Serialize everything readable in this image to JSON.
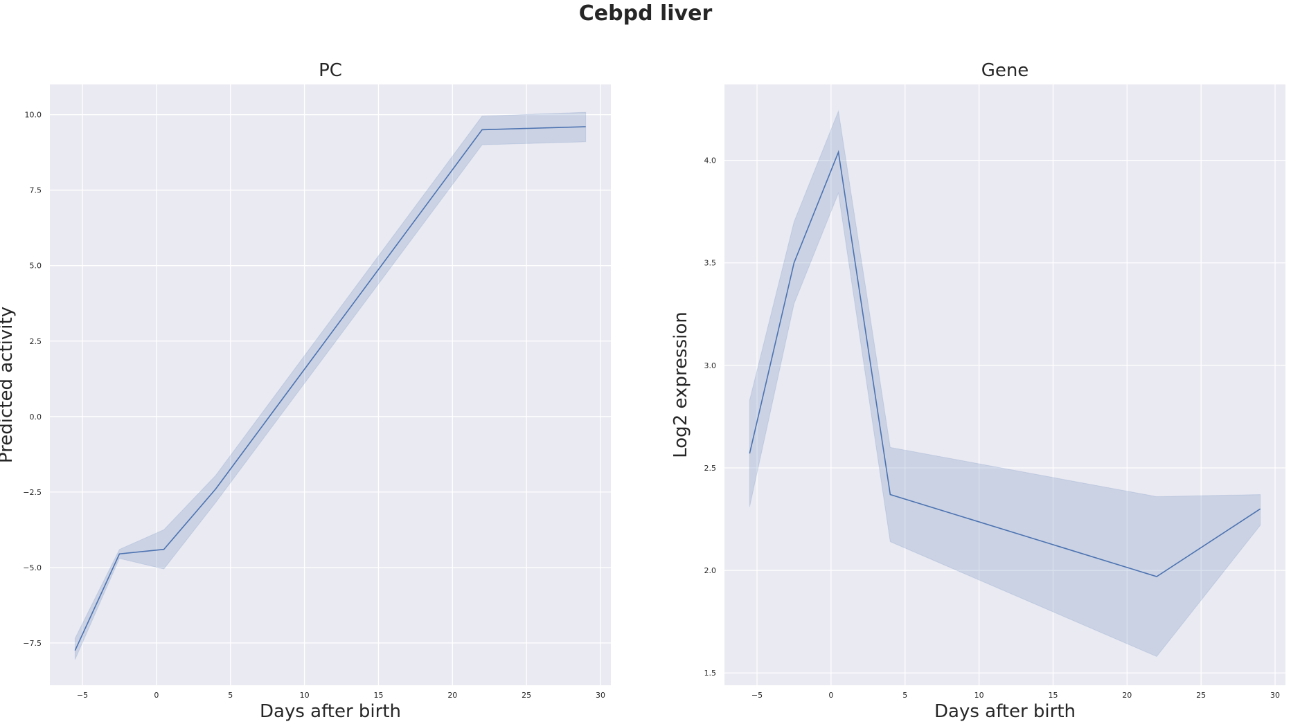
{
  "suptitle": "Cebpd liver",
  "chart_data": [
    {
      "type": "line",
      "title": "PC",
      "xlabel": "Days after birth",
      "ylabel": "Predicted activity",
      "xlim": [
        -7.2,
        30.7
      ],
      "ylim": [
        -8.9,
        11.0
      ],
      "xticks": [
        -5,
        0,
        5,
        10,
        15,
        20,
        25,
        30
      ],
      "yticks": [
        -7.5,
        -5.0,
        -2.5,
        0.0,
        2.5,
        5.0,
        7.5,
        10.0
      ],
      "grid": true,
      "series": [
        {
          "x": [
            -5.5,
            -2.5,
            0.5,
            4.0,
            22.0,
            29.0
          ],
          "y": [
            -7.75,
            -4.55,
            -4.4,
            -2.4,
            9.5,
            9.6
          ],
          "lower": [
            -8.05,
            -4.7,
            -5.05,
            -2.85,
            9.0,
            9.1
          ],
          "upper": [
            -7.35,
            -4.4,
            -3.75,
            -1.95,
            9.95,
            10.08
          ]
        }
      ]
    },
    {
      "type": "line",
      "title": "Gene",
      "xlabel": "Days after birth",
      "ylabel": "Log2 expression",
      "xlim": [
        -7.2,
        30.7
      ],
      "ylim": [
        1.44,
        4.37
      ],
      "xticks": [
        -5,
        0,
        5,
        10,
        15,
        20,
        25,
        30
      ],
      "yticks": [
        1.5,
        2.0,
        2.5,
        3.0,
        3.5,
        4.0
      ],
      "grid": true,
      "series": [
        {
          "x": [
            -5.5,
            -2.5,
            0.5,
            4.0,
            22.0,
            29.0
          ],
          "y": [
            2.57,
            3.5,
            4.04,
            2.37,
            1.97,
            2.3
          ],
          "lower": [
            2.31,
            3.3,
            3.84,
            2.14,
            1.58,
            2.22
          ],
          "upper": [
            2.83,
            3.7,
            4.24,
            2.6,
            2.36,
            2.37
          ]
        }
      ]
    }
  ]
}
